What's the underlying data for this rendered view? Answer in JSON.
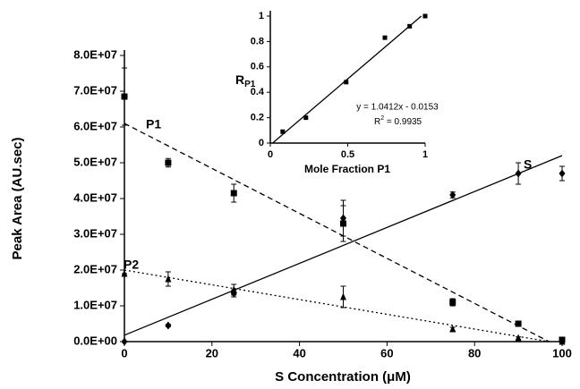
{
  "chart_data": [
    {
      "type": "scatter",
      "x_label": "S Concentration (μM)",
      "y_label": "Peak Area (AU.sec)",
      "xlim": [
        0,
        100
      ],
      "xticks": [
        0,
        20,
        40,
        60,
        80,
        100
      ],
      "ylim": [
        0,
        80000000
      ],
      "yticks": [
        {
          "value": 0,
          "label": "0.0E+00"
        },
        {
          "value": 10000000,
          "label": "1.0E+07"
        },
        {
          "value": 20000000,
          "label": "2.0E+07"
        },
        {
          "value": 30000000,
          "label": "3.0E+07"
        },
        {
          "value": 40000000,
          "label": "4.0E+07"
        },
        {
          "value": 50000000,
          "label": "5.0E+07"
        },
        {
          "value": 60000000,
          "label": "6.0E+07"
        },
        {
          "value": 70000000,
          "label": "7.0E+07"
        },
        {
          "value": 80000000,
          "label": "8.0E+07"
        }
      ],
      "x": [
        0,
        10,
        25,
        50,
        75,
        90,
        100
      ],
      "series": [
        {
          "name": "S",
          "color": "#000000",
          "marker": "diamond",
          "line": "solid",
          "values": [
            0,
            4500000,
            13500000,
            34500000,
            41000000,
            47000000,
            47000000
          ],
          "errors": [
            0,
            300000,
            1000000,
            5000000,
            800000,
            3000000,
            2000000
          ],
          "trend_x": [
            0,
            100
          ],
          "trend_values": [
            1800000,
            52000000
          ]
        },
        {
          "name": "P1",
          "color": "#000000",
          "marker": "square",
          "line": "dashed",
          "values": [
            68500000,
            50000000,
            41500000,
            33000000,
            11000000,
            5000000,
            500000
          ],
          "errors": [
            8000000,
            1200000,
            2500000,
            5000000,
            1000000,
            500000,
            300000
          ],
          "trend_x": [
            0,
            97
          ],
          "trend_values": [
            61000000,
            0
          ]
        },
        {
          "name": "P2",
          "color": "#000000",
          "marker": "triangle",
          "line": "dotted",
          "values": [
            19000000,
            17500000,
            14500000,
            12500000,
            3500000,
            1000000,
            0
          ],
          "errors": [
            0,
            2000000,
            1500000,
            3000000,
            500000,
            300000,
            200000
          ],
          "trend_x": [
            0,
            97
          ],
          "trend_values": [
            20000000,
            0
          ]
        }
      ]
    },
    {
      "type": "scatter",
      "x_label": "Mole Fraction P1",
      "y_label": "R",
      "y_label_subscript": "P1",
      "xlim": [
        0,
        1
      ],
      "xticks": [
        0,
        0.5,
        1
      ],
      "ylim": [
        0,
        1
      ],
      "yticks": [
        0,
        0.2,
        0.4,
        0.6,
        0.8,
        1
      ],
      "x": [
        0.08,
        0.23,
        0.49,
        0.74,
        0.9,
        1.0
      ],
      "series": [
        {
          "color": "#000000",
          "marker": "square",
          "line": "solid",
          "values": [
            0.09,
            0.2,
            0.48,
            0.83,
            0.92,
            1.0
          ],
          "trend_x": [
            0.0147,
            0.975
          ],
          "trend_values": [
            0,
            1
          ]
        }
      ],
      "equation": "y = 1.0412x - 0.0153",
      "r2_base": "R",
      "r2_sup": "2",
      "r2_rest": " = 0.9935"
    }
  ]
}
